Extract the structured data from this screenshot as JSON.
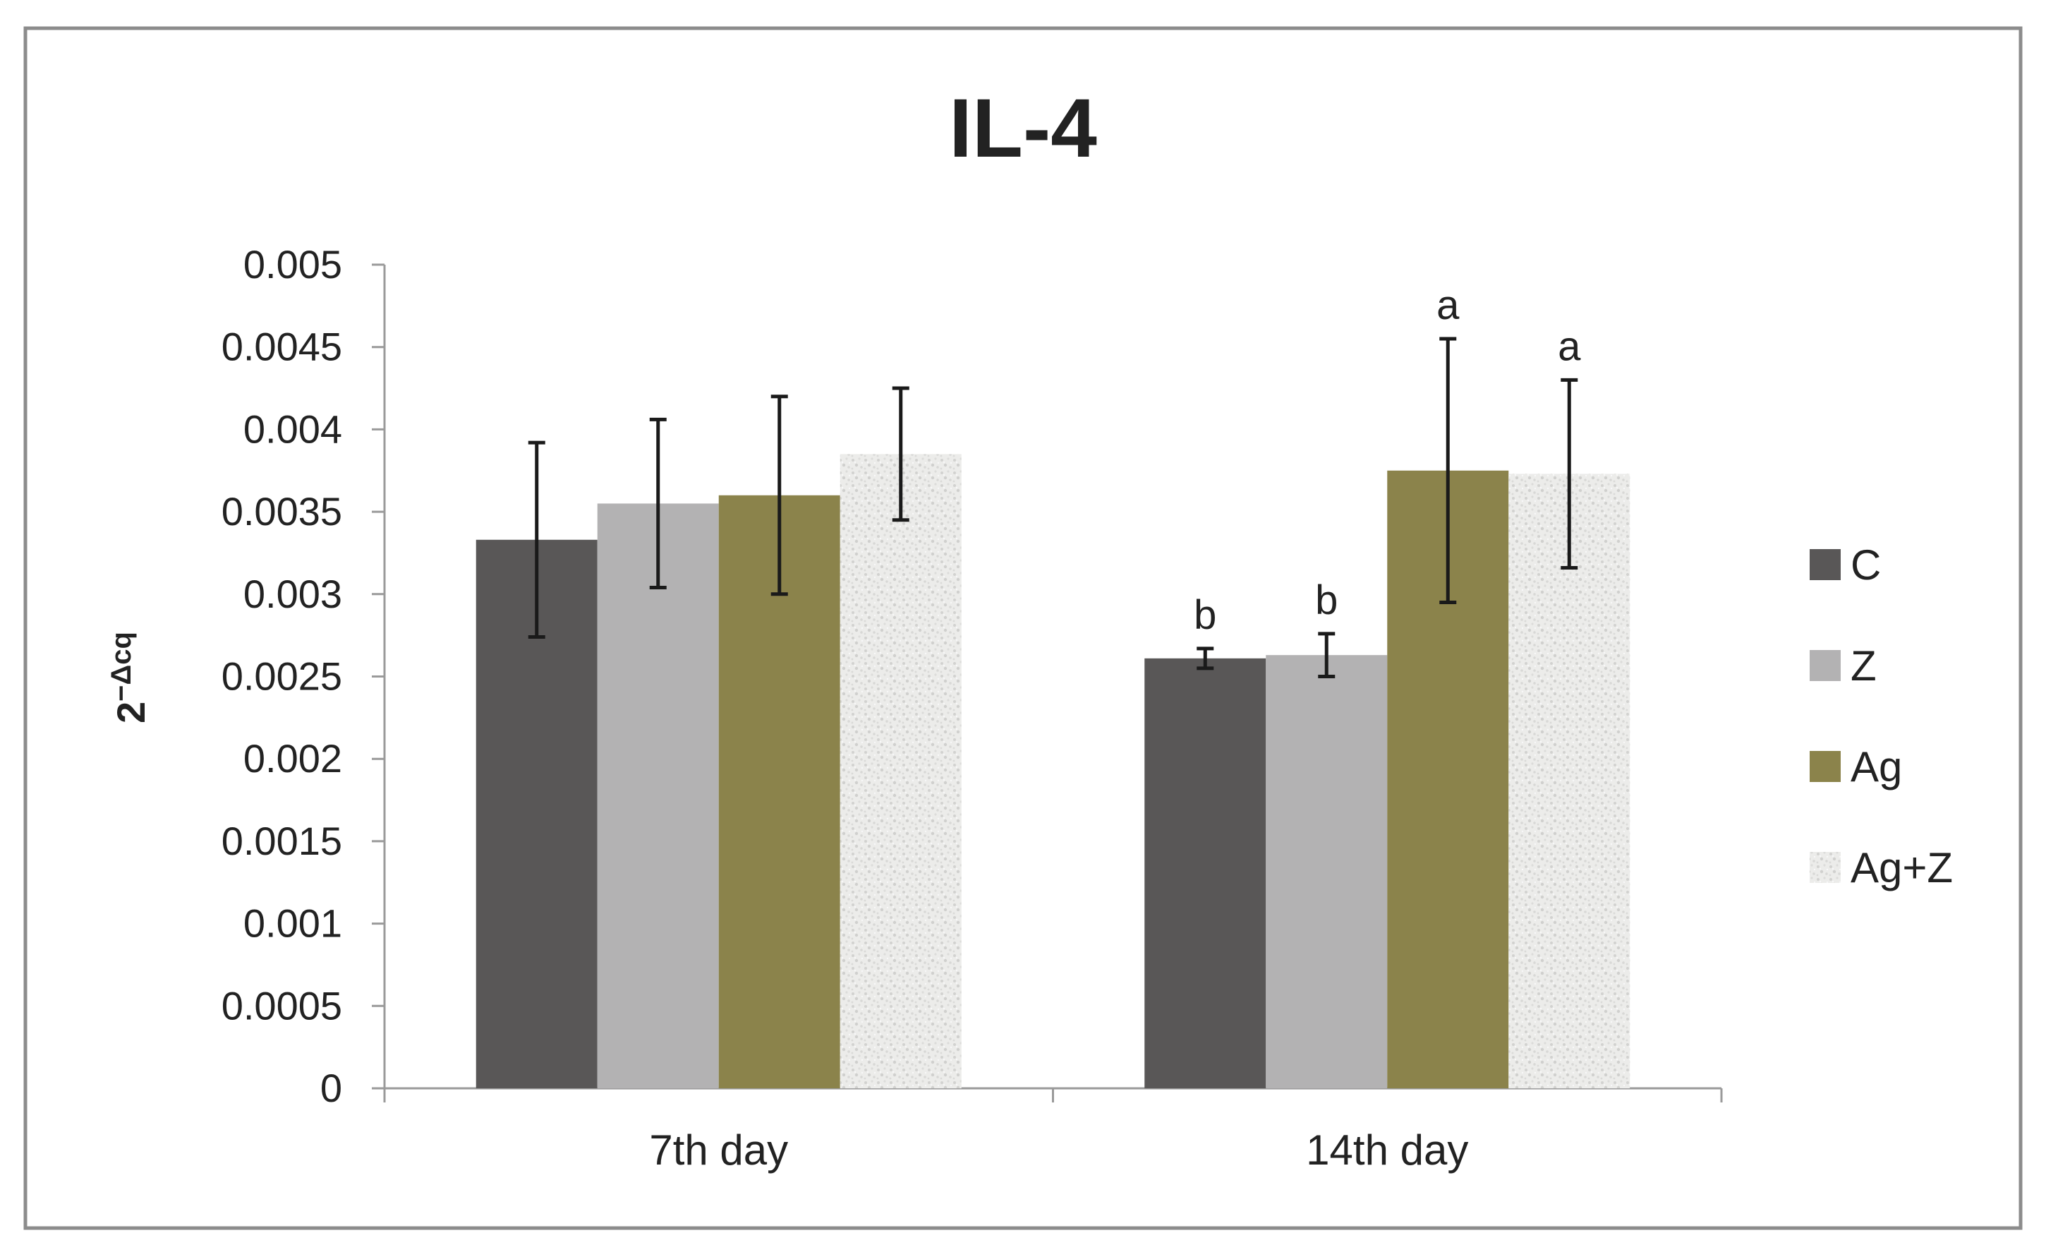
{
  "chart_data": {
    "type": "bar",
    "title": "IL-4",
    "ylabel_base": "2",
    "ylabel_exp": "−Δcq",
    "xlabel": "",
    "ylim": [
      0,
      0.005
    ],
    "yticks": [
      "0",
      "0.0005",
      "0.001",
      "0.0015",
      "0.002",
      "0.0025",
      "0.003",
      "0.0035",
      "0.004",
      "0.0045",
      "0.005"
    ],
    "ytick_values": [
      0,
      0.0005,
      0.001,
      0.0015,
      0.002,
      0.0025,
      0.003,
      0.0035,
      0.004,
      0.0045,
      0.005
    ],
    "categories": [
      "7th day",
      "14th day"
    ],
    "legend_position": "right",
    "grid": false,
    "series": [
      {
        "name": "C",
        "color": "#595757",
        "pattern": "solid",
        "values": [
          0.00333,
          0.00261
        ],
        "errors": [
          0.00059,
          6e-05
        ],
        "annotations": [
          "",
          "b"
        ]
      },
      {
        "name": "Z",
        "color": "#b3b2b3",
        "pattern": "solid",
        "values": [
          0.00355,
          0.00263
        ],
        "errors": [
          0.00051,
          0.00013
        ],
        "annotations": [
          "",
          "b"
        ]
      },
      {
        "name": "Ag",
        "color": "#8b834b",
        "pattern": "solid",
        "values": [
          0.0036,
          0.00375
        ],
        "errors": [
          0.0006,
          0.0008
        ],
        "annotations": [
          "",
          "a"
        ]
      },
      {
        "name": "Ag+Z",
        "color": "#ececea",
        "pattern": "speckle",
        "values": [
          0.00385,
          0.00373
        ],
        "errors": [
          0.0004,
          0.00057
        ],
        "annotations": [
          "",
          "a"
        ]
      }
    ]
  }
}
